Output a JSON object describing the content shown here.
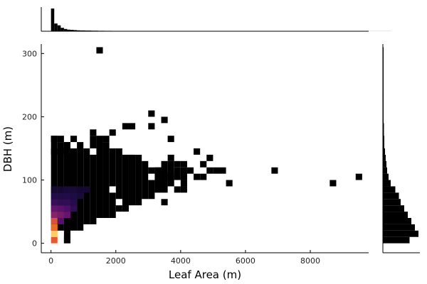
{
  "chart_data": {
    "type": "heatmap",
    "title": "",
    "xlabel": "Leaf Area (m)",
    "ylabel": "DBH (m)",
    "xlim": [
      -300,
      9800
    ],
    "ylim": [
      -15,
      315
    ],
    "x_ticks": [
      0,
      2000,
      4000,
      6000,
      8000
    ],
    "y_ticks": [
      0,
      100,
      200,
      300
    ],
    "x_tick_labels": [
      "0",
      "2000",
      "4000",
      "6000",
      "8000"
    ],
    "y_tick_labels": [
      "0",
      "100",
      "200",
      "300"
    ],
    "grid": false,
    "legend": "none",
    "colormap": "inferno",
    "bin_width_x": 200,
    "bin_height_y": 10,
    "dense_region": {
      "x_range": [
        0,
        4400
      ],
      "y_range": [
        20,
        170
      ],
      "intensity_peak": [
        0,
        60
      ],
      "note_color": "#000000"
    },
    "cells": [
      {
        "x": 100,
        "y": 5,
        "v": 0.75
      },
      {
        "x": 100,
        "y": 15,
        "v": 0.95
      },
      {
        "x": 100,
        "y": 25,
        "v": 0.8
      },
      {
        "x": 100,
        "y": 35,
        "v": 0.72
      },
      {
        "x": 100,
        "y": 45,
        "v": 0.45
      },
      {
        "x": 100,
        "y": 55,
        "v": 0.35
      },
      {
        "x": 100,
        "y": 65,
        "v": 0.22
      },
      {
        "x": 100,
        "y": 75,
        "v": 0.15
      },
      {
        "x": 100,
        "y": 85,
        "v": 0.1
      },
      {
        "x": 300,
        "y": 35,
        "v": 0.3
      },
      {
        "x": 300,
        "y": 45,
        "v": 0.4
      },
      {
        "x": 300,
        "y": 55,
        "v": 0.32
      },
      {
        "x": 300,
        "y": 65,
        "v": 0.2
      },
      {
        "x": 300,
        "y": 75,
        "v": 0.15
      },
      {
        "x": 300,
        "y": 85,
        "v": 0.1
      },
      {
        "x": 500,
        "y": 45,
        "v": 0.35
      },
      {
        "x": 500,
        "y": 55,
        "v": 0.28
      },
      {
        "x": 500,
        "y": 65,
        "v": 0.2
      },
      {
        "x": 500,
        "y": 75,
        "v": 0.15
      },
      {
        "x": 500,
        "y": 85,
        "v": 0.12
      },
      {
        "x": 700,
        "y": 55,
        "v": 0.2
      },
      {
        "x": 700,
        "y": 65,
        "v": 0.17
      },
      {
        "x": 700,
        "y": 75,
        "v": 0.14
      },
      {
        "x": 700,
        "y": 85,
        "v": 0.12
      },
      {
        "x": 900,
        "y": 75,
        "v": 0.12
      },
      {
        "x": 900,
        "y": 85,
        "v": 0.1
      },
      {
        "x": 1100,
        "y": 85,
        "v": 0.1
      }
    ],
    "outliers": [
      {
        "x": 1500,
        "y": 305
      },
      {
        "x": 3100,
        "y": 205
      },
      {
        "x": 3500,
        "y": 195
      },
      {
        "x": 3100,
        "y": 185
      },
      {
        "x": 2300,
        "y": 185
      },
      {
        "x": 2500,
        "y": 185
      },
      {
        "x": 3700,
        "y": 165
      },
      {
        "x": 3700,
        "y": 135
      },
      {
        "x": 3900,
        "y": 125
      },
      {
        "x": 4100,
        "y": 125
      },
      {
        "x": 4300,
        "y": 115
      },
      {
        "x": 4500,
        "y": 105
      },
      {
        "x": 4700,
        "y": 125
      },
      {
        "x": 4900,
        "y": 115
      },
      {
        "x": 4900,
        "y": 135
      },
      {
        "x": 5100,
        "y": 115
      },
      {
        "x": 5300,
        "y": 115
      },
      {
        "x": 4500,
        "y": 145
      },
      {
        "x": 3300,
        "y": 115
      },
      {
        "x": 3500,
        "y": 95
      },
      {
        "x": 3700,
        "y": 105
      },
      {
        "x": 3900,
        "y": 85
      },
      {
        "x": 3500,
        "y": 65
      },
      {
        "x": 4100,
        "y": 95
      },
      {
        "x": 4100,
        "y": 85
      },
      {
        "x": 4700,
        "y": 105
      },
      {
        "x": 5500,
        "y": 95
      },
      {
        "x": 6900,
        "y": 115
      },
      {
        "x": 8700,
        "y": 95
      },
      {
        "x": 9500,
        "y": 105
      },
      {
        "x": 1300,
        "y": 175
      },
      {
        "x": 1900,
        "y": 175
      },
      {
        "x": 300,
        "y": 165
      },
      {
        "x": 700,
        "y": 165
      },
      {
        "x": 1700,
        "y": 165
      },
      {
        "x": 500,
        "y": 155
      },
      {
        "x": 300,
        "y": 145
      },
      {
        "x": 100,
        "y": 145
      },
      {
        "x": 100,
        "y": 165
      },
      {
        "x": 500,
        "y": 5
      }
    ],
    "marginal_x": {
      "bins": [
        50,
        150,
        250,
        350,
        450,
        550,
        650,
        750,
        850,
        950,
        1150,
        1350,
        1550,
        1750,
        2000,
        2500,
        3000,
        4000,
        6000,
        9000
      ],
      "counts": [
        100,
        34,
        26,
        15,
        10,
        7,
        6,
        5,
        4,
        3.5,
        3,
        2.5,
        2,
        1.8,
        1.5,
        1.2,
        1,
        0.8,
        0.5,
        0.3
      ]
    },
    "marginal_y": {
      "bins": [
        5,
        15,
        25,
        35,
        45,
        55,
        65,
        75,
        85,
        95,
        105,
        115,
        125,
        135,
        145,
        155,
        165,
        175,
        185,
        195,
        205,
        215,
        225,
        235,
        245,
        255,
        265,
        275,
        285,
        295,
        305
      ],
      "counts": [
        75,
        100,
        90,
        80,
        70,
        60,
        50,
        45,
        35,
        22,
        16,
        12,
        10,
        8,
        6,
        4,
        4,
        3,
        3,
        2,
        2,
        1.5,
        1.5,
        1.5,
        1.5,
        1.2,
        1.2,
        1.2,
        1.2,
        1.2,
        1.2
      ]
    }
  }
}
